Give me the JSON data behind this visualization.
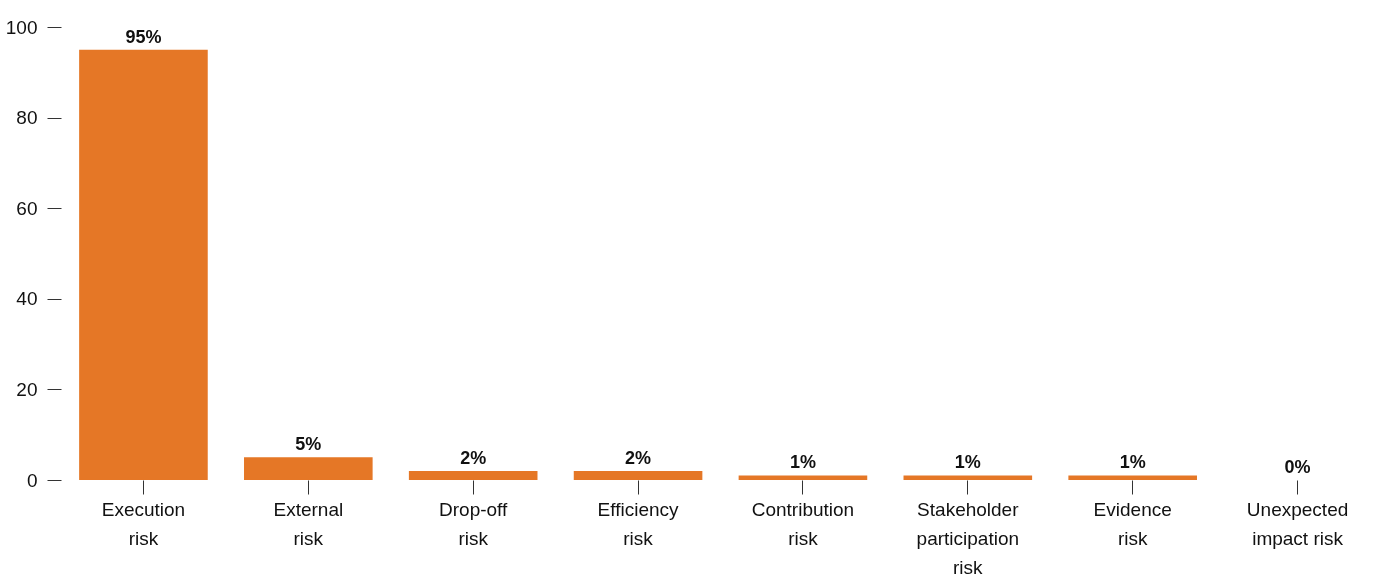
{
  "chart_data": {
    "type": "bar",
    "categories": [
      "Execution\nrisk",
      "External\nrisk",
      "Drop-off\nrisk",
      "Efficiency\nrisk",
      "Contribution\nrisk",
      "Stakeholder\nparticipation\nrisk",
      "Evidence\nrisk",
      "Unexpected\nimpact risk"
    ],
    "values": [
      95,
      5,
      2,
      2,
      1,
      1,
      1,
      0
    ],
    "value_labels": [
      "95%",
      "5%",
      "2%",
      "2%",
      "1%",
      "1%",
      "1%",
      "0%"
    ],
    "color": "#e57726",
    "ylim": [
      0,
      100
    ],
    "yticks": [
      0,
      20,
      40,
      60,
      80,
      100
    ],
    "grid": false
  }
}
